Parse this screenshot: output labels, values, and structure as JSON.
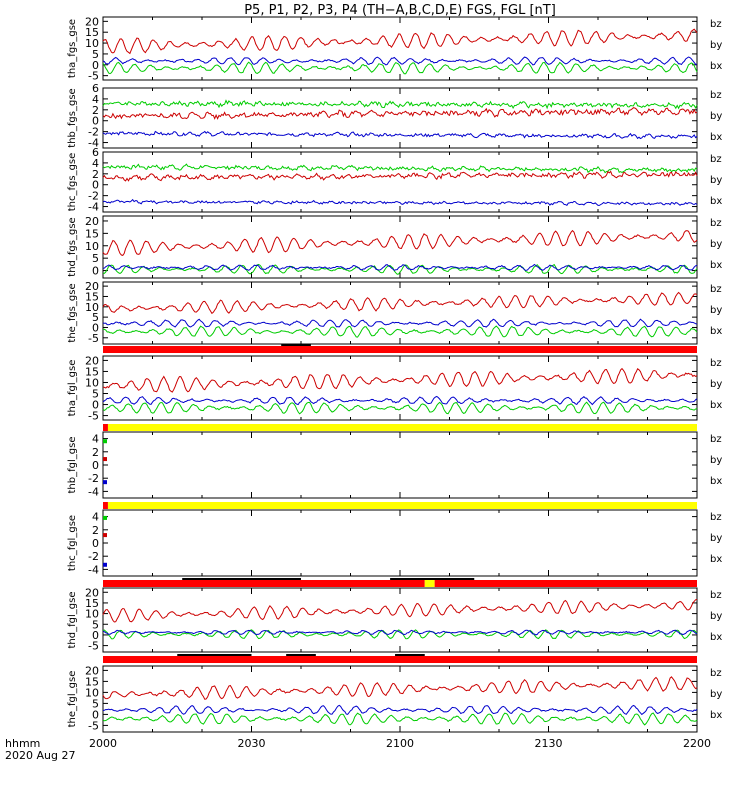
{
  "title": "P5, P1, P2, P3, P4 (TH−A,B,C,D,E) FGS, FGL [nT]",
  "time_label": "hhmm",
  "date_label": "2020 Aug 27",
  "x_ticks": [
    "2000",
    "2030",
    "2100",
    "2130",
    "2200"
  ],
  "colors": {
    "bx": "#0000cc",
    "by": "#00cc00",
    "bz": "#cc0000",
    "flag_red": "#ff0000",
    "flag_yellow": "#ffff00"
  },
  "chart_data": {
    "type": "line",
    "x_range_minutes": [
      0,
      120
    ],
    "panels": [
      {
        "ylabel": "tha_fgs_gse",
        "ylim": [
          -7,
          22
        ],
        "ticks": [
          20,
          15,
          10,
          5,
          0,
          -5
        ],
        "legend": [
          "bz",
          "by",
          "bx"
        ],
        "series": [
          {
            "name": "bz",
            "mean": 11,
            "amp": 3.5,
            "trend": 5,
            "noise": 0.4,
            "seed": 1
          },
          {
            "name": "by",
            "mean": -1.5,
            "amp": 2.5,
            "trend": 0,
            "noise": 0.3,
            "seed": 2
          },
          {
            "name": "bx",
            "mean": 1.8,
            "amp": 1.6,
            "trend": 0,
            "noise": 0.3,
            "seed": 3
          }
        ]
      },
      {
        "ylabel": "thb_fgs_gse",
        "ylim": [
          -5,
          6
        ],
        "ticks": [
          6,
          4,
          2,
          0,
          -2,
          -4
        ],
        "legend": [
          "bz",
          "by",
          "bx"
        ],
        "series": [
          {
            "name": "by",
            "mean": 3.0,
            "amp": 0.3,
            "trend": -0.4,
            "noise": 0.35,
            "seed": 4
          },
          {
            "name": "bz",
            "mean": 1.3,
            "amp": 0.4,
            "trend": 1.0,
            "noise": 0.4,
            "seed": 5
          },
          {
            "name": "bx",
            "mean": -2.6,
            "amp": 0.25,
            "trend": -0.6,
            "noise": 0.25,
            "seed": 6
          }
        ]
      },
      {
        "ylabel": "thc_fgs_gse",
        "ylim": [
          -5,
          6
        ],
        "ticks": [
          6,
          4,
          2,
          0,
          -2,
          -4
        ],
        "legend": [
          "bz",
          "by",
          "bx"
        ],
        "series": [
          {
            "name": "by",
            "mean": 3.0,
            "amp": 0.3,
            "trend": -0.6,
            "noise": 0.3,
            "seed": 7
          },
          {
            "name": "bz",
            "mean": 1.6,
            "amp": 0.4,
            "trend": 0.7,
            "noise": 0.35,
            "seed": 8
          },
          {
            "name": "bx",
            "mean": -3.3,
            "amp": 0.2,
            "trend": -0.4,
            "noise": 0.2,
            "seed": 9
          }
        ]
      },
      {
        "ylabel": "thd_fgs_gse",
        "ylim": [
          -3,
          22
        ],
        "ticks": [
          20,
          15,
          10,
          5,
          0
        ],
        "legend": [
          "bz",
          "by",
          "bx"
        ],
        "series": [
          {
            "name": "bz",
            "mean": 11.5,
            "amp": 3.0,
            "trend": 5,
            "noise": 0.3,
            "seed": 10
          },
          {
            "name": "by",
            "mean": 0.5,
            "amp": 1.8,
            "trend": 0,
            "noise": 0.25,
            "seed": 11
          },
          {
            "name": "bx",
            "mean": 1.2,
            "amp": 1.0,
            "trend": 0,
            "noise": 0.25,
            "seed": 12
          }
        ]
      },
      {
        "ylabel": "the_fgs_gse",
        "ylim": [
          -8,
          22
        ],
        "ticks": [
          20,
          15,
          10,
          5,
          0,
          -5
        ],
        "legend": [
          "bz",
          "by",
          "bx"
        ],
        "series": [
          {
            "name": "bz",
            "mean": 11.5,
            "amp": 3.0,
            "trend": 5,
            "noise": 0.35,
            "seed": 13
          },
          {
            "name": "by",
            "mean": -2.0,
            "amp": 2.5,
            "trend": 0,
            "noise": 0.3,
            "seed": 14
          },
          {
            "name": "bx",
            "mean": 2.0,
            "amp": 1.8,
            "trend": 0,
            "noise": 0.3,
            "seed": 15
          }
        ]
      },
      {
        "ylabel": "tha_fgl_gse",
        "ylim": [
          -7,
          22
        ],
        "ticks": [
          20,
          15,
          10,
          5,
          0,
          -5
        ],
        "legend": [
          "bz",
          "by",
          "bx"
        ],
        "series": [
          {
            "name": "bz",
            "mean": 11,
            "amp": 3.5,
            "trend": 5,
            "noise": 0.4,
            "seed": 16
          },
          {
            "name": "by",
            "mean": -1.5,
            "amp": 2.5,
            "trend": 0,
            "noise": 0.3,
            "seed": 17
          },
          {
            "name": "bx",
            "mean": 1.8,
            "amp": 1.6,
            "trend": 0,
            "noise": 0.3,
            "seed": 18
          }
        ]
      },
      {
        "ylabel": "thb_fgl_gse",
        "ylim": [
          -5,
          5
        ],
        "ticks": [
          4,
          2,
          0,
          -2,
          -4
        ],
        "legend": [
          "bz",
          "by",
          "bx"
        ],
        "series": [],
        "markers": [
          {
            "name": "by",
            "value": 3.6
          },
          {
            "name": "bz",
            "value": 0.9
          },
          {
            "name": "bx",
            "value": -2.6
          }
        ]
      },
      {
        "ylabel": "thc_fgl_gse",
        "ylim": [
          -5,
          5
        ],
        "ticks": [
          4,
          2,
          0,
          -2,
          -4
        ],
        "legend": [
          "bz",
          "by",
          "bx"
        ],
        "series": [],
        "markers": [
          {
            "name": "by",
            "value": 3.8
          },
          {
            "name": "bz",
            "value": 1.2
          },
          {
            "name": "bx",
            "value": -3.3
          }
        ]
      },
      {
        "ylabel": "thd_fgl_gse",
        "ylim": [
          -8,
          22
        ],
        "ticks": [
          20,
          15,
          10,
          5,
          0,
          -5
        ],
        "legend": [
          "bz",
          "by",
          "bx"
        ],
        "series": [
          {
            "name": "bz",
            "mean": 11.5,
            "amp": 3.0,
            "trend": 5,
            "noise": 0.3,
            "seed": 19
          },
          {
            "name": "by",
            "mean": 0.3,
            "amp": 2.0,
            "trend": 0,
            "noise": 0.25,
            "seed": 20
          },
          {
            "name": "bx",
            "mean": 1.2,
            "amp": 1.0,
            "trend": 0,
            "noise": 0.25,
            "seed": 21
          }
        ]
      },
      {
        "ylabel": "the_fgl_gse",
        "ylim": [
          -8,
          22
        ],
        "ticks": [
          20,
          15,
          10,
          5,
          0,
          -5
        ],
        "legend": [
          "bz",
          "by",
          "bx"
        ],
        "series": [
          {
            "name": "bz",
            "mean": 11.5,
            "amp": 3.0,
            "trend": 5,
            "noise": 0.35,
            "seed": 22
          },
          {
            "name": "by",
            "mean": -2.0,
            "amp": 2.5,
            "trend": 0,
            "noise": 0.3,
            "seed": 23
          },
          {
            "name": "bx",
            "mean": 2.0,
            "amp": 1.8,
            "trend": 0,
            "noise": 0.3,
            "seed": 24
          }
        ]
      }
    ],
    "mode_bars": [
      {
        "after_panel": 4,
        "segments": [
          {
            "color": "flag_red",
            "start": 0,
            "end": 120
          }
        ],
        "dark_marks": [
          [
            36,
            42
          ]
        ]
      },
      {
        "after_panel": 5,
        "segments": [
          {
            "color": "flag_red",
            "start": 0,
            "end": 1
          },
          {
            "color": "flag_yellow",
            "start": 1,
            "end": 120
          }
        ],
        "dark_marks": []
      },
      {
        "after_panel": 6,
        "segments": [
          {
            "color": "flag_red",
            "start": 0,
            "end": 1
          },
          {
            "color": "flag_yellow",
            "start": 1,
            "end": 120
          }
        ],
        "dark_marks": []
      },
      {
        "after_panel": 7,
        "segments": [
          {
            "color": "flag_red",
            "start": 0,
            "end": 65
          },
          {
            "color": "flag_yellow",
            "start": 65,
            "end": 67
          },
          {
            "color": "flag_red",
            "start": 67,
            "end": 120
          }
        ],
        "dark_marks": [
          [
            16,
            40
          ],
          [
            58,
            75
          ]
        ]
      },
      {
        "after_panel": 8,
        "segments": [
          {
            "color": "flag_red",
            "start": 0,
            "end": 120
          }
        ],
        "dark_marks": [
          [
            15,
            30
          ],
          [
            37,
            43
          ],
          [
            59,
            65
          ]
        ]
      }
    ]
  }
}
